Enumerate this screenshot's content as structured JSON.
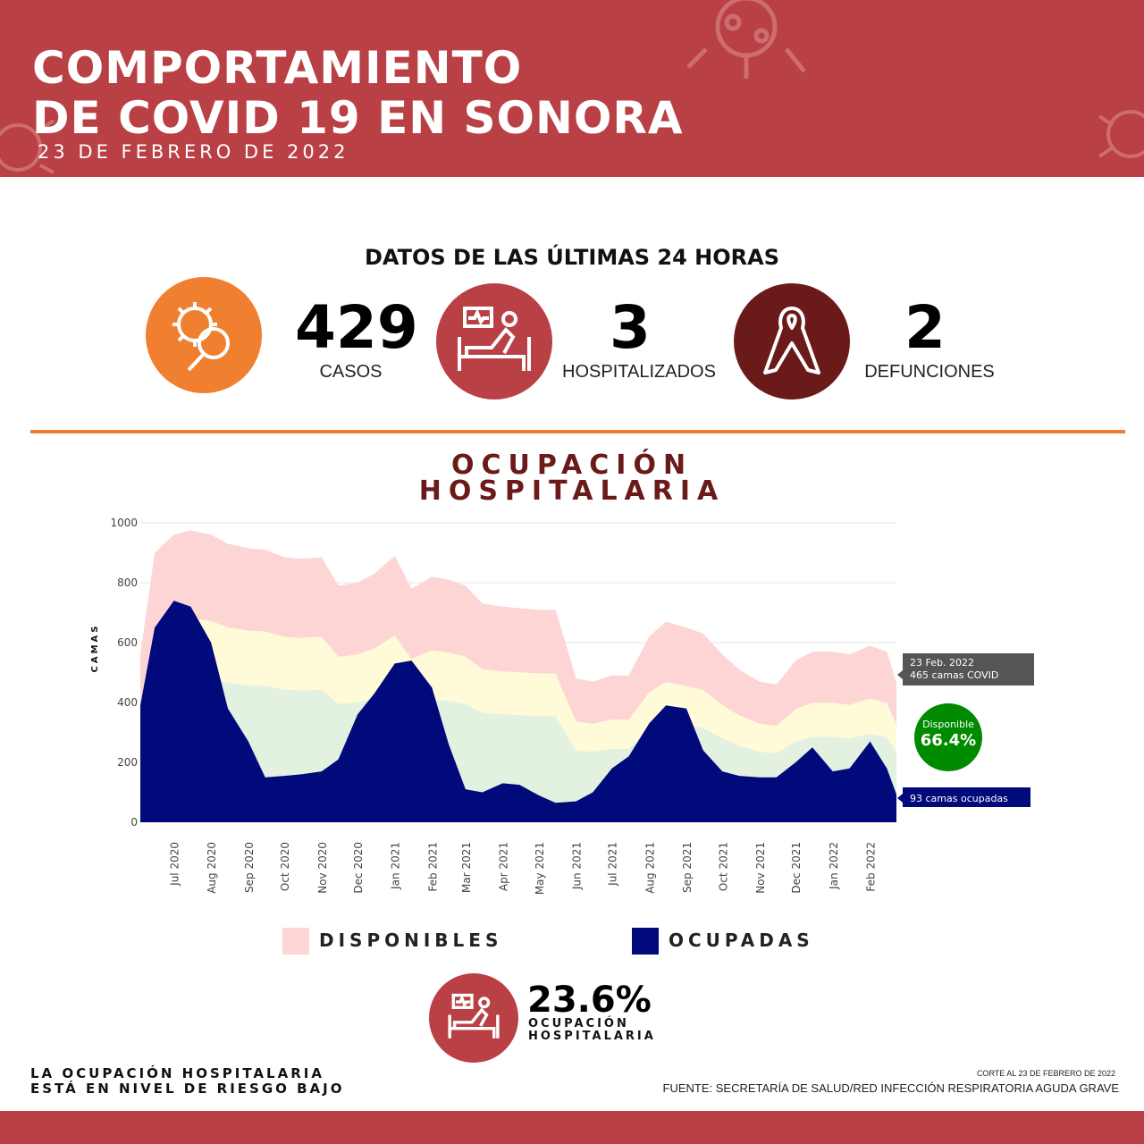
{
  "header": {
    "title_line1": "COMPORTAMIENTO",
    "title_line2": "DE COVID 19 EN SONORA",
    "date": "23 DE FEBRERO DE 2022"
  },
  "summary": {
    "heading": "DATOS DE LAS ÚLTIMAS 24 HORAS",
    "stats": [
      {
        "value": "429",
        "label": "CASOS",
        "icon": "virus-magnifier-icon",
        "color": "#f08030"
      },
      {
        "value": "3",
        "label": "HOSPITALIZADOS",
        "icon": "hospital-bed-icon",
        "color": "#b94045"
      },
      {
        "value": "2",
        "label": "DEFUNCIONES",
        "icon": "ribbon-icon",
        "color": "#6b1a1a"
      }
    ]
  },
  "section": {
    "title_line1": "OCUPACIÓN",
    "title_line2": "HOSPITALARIA"
  },
  "chart_data": {
    "type": "area",
    "ylabel": "CAMAS",
    "ylim": [
      0,
      1000
    ],
    "yticks": [
      0,
      200,
      400,
      600,
      800,
      1000
    ],
    "grid": true,
    "xticks": [
      "Jul 2020",
      "Aug 2020",
      "Sep 2020",
      "Oct 2020",
      "Nov 2020",
      "Dec 2020",
      "Jan 2021",
      "Feb 2021",
      "Mar 2021",
      "Apr 2021",
      "May 2021",
      "Jun 2021",
      "Jul 2021",
      "Aug 2021",
      "Sep 2021",
      "Oct 2021",
      "Nov 2021",
      "Dec 2021",
      "Jan 2022",
      "Feb 2022"
    ],
    "x": [
      "2020-06-03",
      "2020-06-15",
      "2020-07-01",
      "2020-07-15",
      "2020-08-01",
      "2020-08-15",
      "2020-09-01",
      "2020-09-15",
      "2020-10-01",
      "2020-10-15",
      "2020-11-01",
      "2020-11-15",
      "2020-12-01",
      "2020-12-15",
      "2021-01-01",
      "2021-01-15",
      "2021-02-01",
      "2021-02-15",
      "2021-03-01",
      "2021-03-15",
      "2021-04-01",
      "2021-04-15",
      "2021-05-01",
      "2021-05-15",
      "2021-06-01",
      "2021-06-15",
      "2021-07-01",
      "2021-07-15",
      "2021-08-01",
      "2021-08-15",
      "2021-09-01",
      "2021-09-15",
      "2021-10-01",
      "2021-10-15",
      "2021-11-01",
      "2021-11-15",
      "2021-12-01",
      "2021-12-15",
      "2022-01-01",
      "2022-01-15",
      "2022-02-01",
      "2022-02-15",
      "2022-02-23"
    ],
    "series": [
      {
        "name": "DISPONIBLES",
        "color": "#fdd5d5",
        "values": [
          560,
          900,
          960,
          975,
          960,
          930,
          915,
          910,
          885,
          880,
          885,
          790,
          800,
          830,
          890,
          780,
          820,
          810,
          790,
          730,
          720,
          715,
          710,
          710,
          480,
          470,
          490,
          490,
          620,
          670,
          650,
          630,
          560,
          510,
          470,
          460,
          540,
          570,
          570,
          560,
          590,
          570,
          465
        ]
      },
      {
        "name": "OCUPADAS",
        "color": "#000a7a",
        "values": [
          390,
          650,
          740,
          720,
          600,
          380,
          270,
          150,
          155,
          160,
          170,
          210,
          360,
          430,
          530,
          540,
          450,
          260,
          110,
          100,
          130,
          125,
          90,
          65,
          70,
          100,
          180,
          220,
          330,
          390,
          380,
          240,
          170,
          155,
          150,
          150,
          200,
          250,
          170,
          180,
          270,
          180,
          93
        ]
      }
    ],
    "bands": {
      "green": "#e3f1e0",
      "yellow": "#fffbd8"
    },
    "annotations": {
      "tooltip_date": "23 Feb. 2022",
      "tooltip_total": "465 camas COVID",
      "available_label": "Disponible",
      "available_pct": "66.4%",
      "available_color": "#008a00",
      "occupied": "93  camas ocupadas"
    }
  },
  "legend": {
    "available": "DISPONIBLES",
    "occupied": "OCUPADAS"
  },
  "occupancy": {
    "value": "23.6%",
    "label_line1": "OCUPACIÓN",
    "label_line2": "HOSPITALARIA"
  },
  "footer": {
    "risk_line1": "LA OCUPACIÓN HOSPITALARIA",
    "risk_line2": "ESTÁ EN NIVEL DE RIESGO BAJO",
    "cutoff": "CORTE AL 23 DE FEBRERO DE 2022",
    "source": "FUENTE: SECRETARÍA DE SALUD/RED INFECCIÓN RESPIRATORIA AGUDA GRAVE"
  }
}
